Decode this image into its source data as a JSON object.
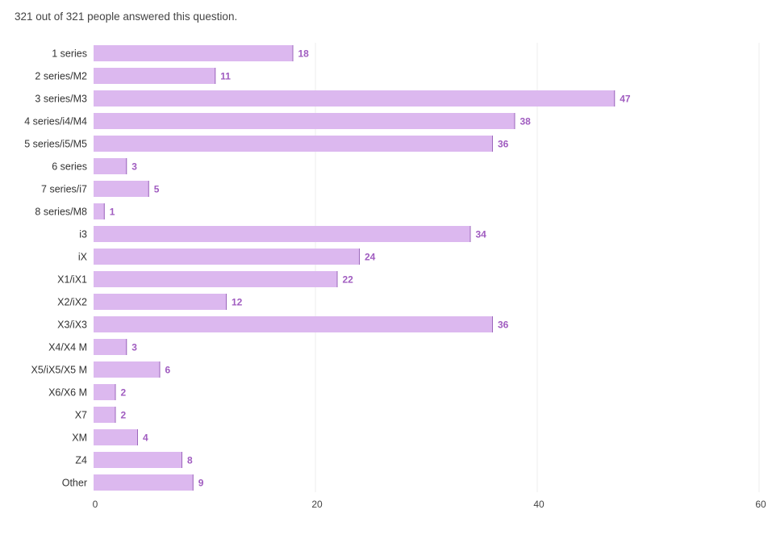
{
  "summary": "321 out of 321 people answered this question.",
  "chart_data": {
    "type": "bar",
    "orientation": "horizontal",
    "categories": [
      "1 series",
      "2 series/M2",
      "3 series/M3",
      "4 series/i4/M4",
      "5 series/i5/M5",
      "6 series",
      "7 series/i7",
      "8 series/M8",
      "i3",
      "iX",
      "X1/iX1",
      "X2/iX2",
      "X3/iX3",
      "X4/X4 M",
      "X5/iX5/X5 M",
      "X6/X6 M",
      "X7",
      "XM",
      "Z4",
      "Other"
    ],
    "values": [
      18,
      11,
      47,
      38,
      36,
      3,
      5,
      1,
      34,
      24,
      22,
      12,
      36,
      3,
      6,
      2,
      2,
      4,
      8,
      9
    ],
    "xlim": [
      0,
      60
    ],
    "xticks": [
      0,
      20,
      40,
      60
    ],
    "grid": true,
    "bar_color": "#dcb8ef",
    "bar_edge_color": "#9b67bb",
    "value_label_color": "#a05cc0"
  }
}
